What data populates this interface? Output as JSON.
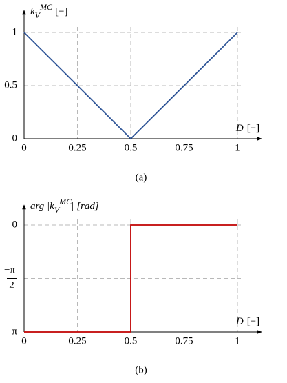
{
  "chart_data": [
    {
      "type": "line",
      "y_label": {
        "base": "k",
        "sub": "V",
        "sup": "MC",
        "unit": "[−]"
      },
      "x_label": {
        "var": "D",
        "unit": "[−]"
      },
      "caption": "(a)",
      "x": [
        0,
        0.5,
        1
      ],
      "series": [
        {
          "color": "#2f5597",
          "values": [
            1,
            0,
            1
          ]
        }
      ],
      "xlim": [
        0,
        1
      ],
      "xticks": [
        0,
        0.25,
        0.5,
        0.75,
        1
      ],
      "ylim": [
        0,
        1
      ],
      "yticks": [
        0,
        0.5,
        1
      ],
      "grid": true
    },
    {
      "type": "line",
      "y_label": {
        "prefix": "arg |",
        "base": "k",
        "sub": "V",
        "sup": "MC",
        "suffix": "|",
        "unit": "[rad]"
      },
      "x_label": {
        "var": "D",
        "unit": "[−]"
      },
      "caption": "(b)",
      "x": [
        0,
        0.5,
        0.5,
        1
      ],
      "series": [
        {
          "color": "#c00000",
          "values": [
            -3.141593,
            -3.141593,
            0,
            0
          ]
        }
      ],
      "xlim": [
        0,
        1
      ],
      "xticks": [
        0,
        0.25,
        0.5,
        0.75,
        1
      ],
      "ylim": [
        -3.141593,
        0
      ],
      "yticks": [
        {
          "value": -3.141593,
          "label": "−π"
        },
        {
          "value": -1.570796,
          "label": "−π/2"
        },
        0
      ],
      "grid": true
    }
  ]
}
